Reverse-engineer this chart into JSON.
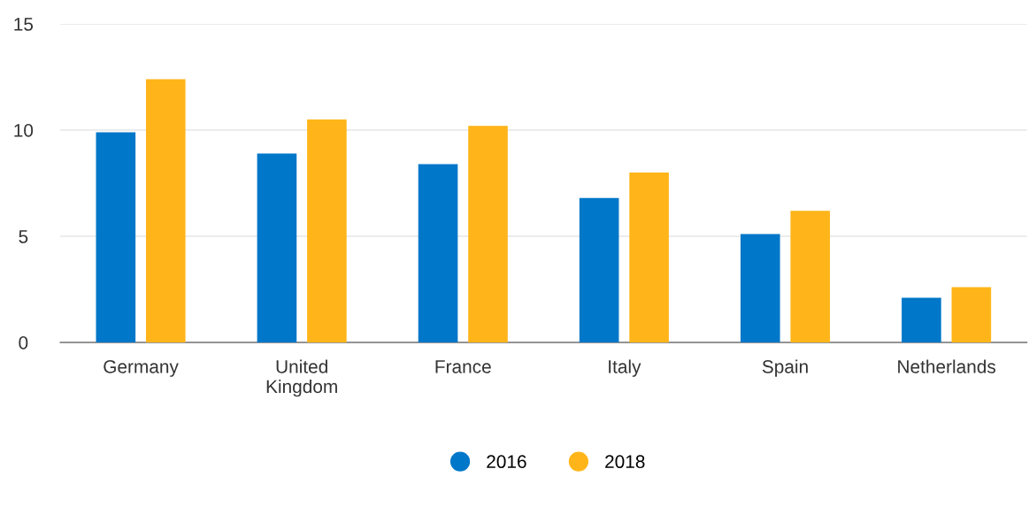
{
  "chart_data": {
    "type": "bar",
    "categories": [
      "Germany",
      "United\nKingdom",
      "France",
      "Italy",
      "Spain",
      "Netherlands"
    ],
    "series": [
      {
        "name": "2016",
        "color": "#0077c8",
        "values": [
          9.9,
          8.9,
          8.4,
          6.8,
          5.1,
          2.1
        ]
      },
      {
        "name": "2018",
        "color": "#ffb519",
        "values": [
          12.4,
          10.5,
          10.2,
          8.0,
          6.2,
          2.6
        ]
      }
    ],
    "ylim": [
      0,
      15
    ],
    "yticks": [
      0,
      5,
      10,
      15
    ],
    "grid": "y",
    "legend": "bottom",
    "marker": "circle"
  }
}
